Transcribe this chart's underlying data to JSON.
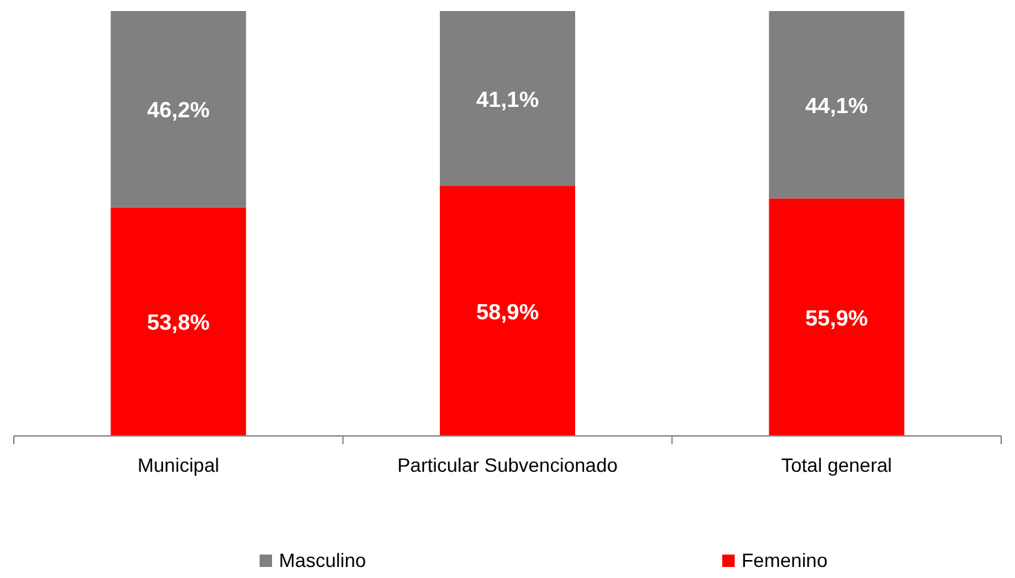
{
  "chart_data": {
    "type": "bar",
    "stacked": true,
    "categories": [
      "Municipal",
      "Particular Subvencionado",
      "Total general"
    ],
    "series": [
      {
        "name": "Femenino",
        "color": "#ff0000",
        "values": [
          53.8,
          58.9,
          55.9
        ],
        "value_labels": [
          "53,8%",
          "58,9%",
          "55,9%"
        ]
      },
      {
        "name": "Masculino",
        "color": "#808080",
        "values": [
          46.2,
          41.1,
          44.1
        ],
        "value_labels": [
          "46,2%",
          "41,1%",
          "44,1%"
        ]
      }
    ],
    "legend": "bottom"
  }
}
